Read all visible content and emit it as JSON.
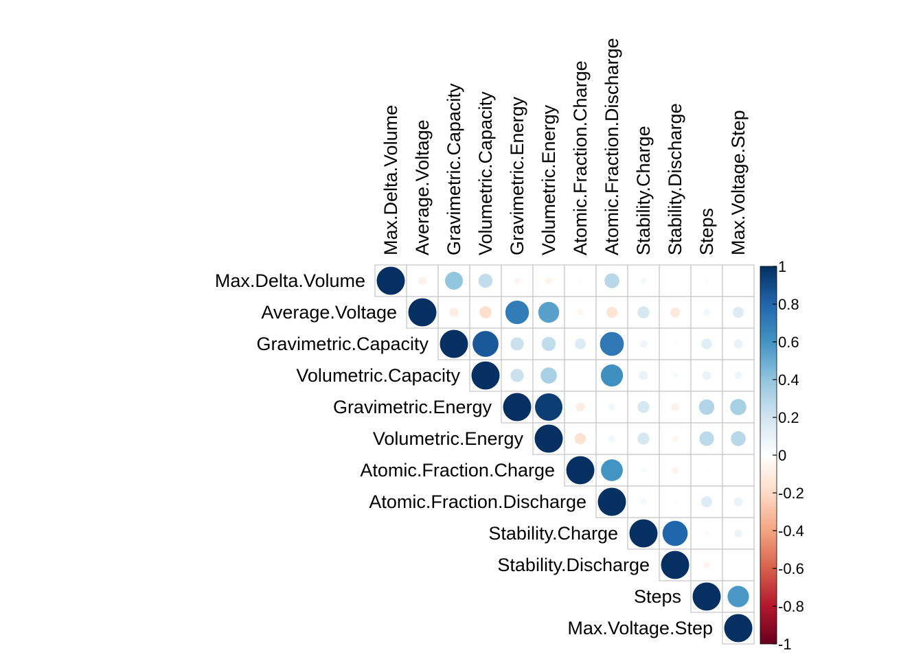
{
  "chart_data": {
    "type": "heatmap",
    "subtype": "correlation-circles-upper",
    "variables": [
      "Max.Delta.Volume",
      "Average.Voltage",
      "Gravimetric.Capacity",
      "Volumetric.Capacity",
      "Gravimetric.Energy",
      "Volumetric.Energy",
      "Atomic.Fraction.Charge",
      "Atomic.Fraction.Discharge",
      "Stability.Charge",
      "Stability.Discharge",
      "Steps",
      "Max.Voltage.Step"
    ],
    "matrix": [
      [
        1,
        -0.08,
        0.4,
        0.25,
        -0.05,
        -0.06,
        0.02,
        0.28,
        0.05,
        0,
        0.02,
        0
      ],
      [
        null,
        1,
        -0.1,
        -0.18,
        0.7,
        0.55,
        -0.05,
        -0.15,
        0.18,
        -0.12,
        0.06,
        0.15
      ],
      [
        null,
        null,
        1,
        0.85,
        0.22,
        0.25,
        0.15,
        0.72,
        0.07,
        0.02,
        0.14,
        0.1
      ],
      [
        null,
        null,
        null,
        1,
        0.22,
        0.33,
        0,
        0.62,
        0.1,
        0.04,
        0.1,
        0.07
      ],
      [
        null,
        null,
        null,
        null,
        1,
        0.95,
        -0.1,
        0.06,
        0.18,
        -0.08,
        0.3,
        0.33
      ],
      [
        null,
        null,
        null,
        null,
        null,
        1,
        -0.16,
        0.06,
        0.18,
        -0.05,
        0.27,
        0.28
      ],
      [
        null,
        null,
        null,
        null,
        null,
        null,
        1,
        0.6,
        0.03,
        -0.06,
        0.02,
        0
      ],
      [
        null,
        null,
        null,
        null,
        null,
        null,
        null,
        1,
        0.05,
        0.02,
        0.15,
        0.1
      ],
      [
        null,
        null,
        null,
        null,
        null,
        null,
        null,
        null,
        1,
        0.8,
        0.03,
        0.08
      ],
      [
        null,
        null,
        null,
        null,
        null,
        null,
        null,
        null,
        null,
        1,
        -0.06,
        0
      ],
      [
        null,
        null,
        null,
        null,
        null,
        null,
        null,
        null,
        null,
        null,
        1,
        0.58
      ],
      [
        null,
        null,
        null,
        null,
        null,
        null,
        null,
        null,
        null,
        null,
        null,
        1
      ]
    ],
    "colorbar": {
      "range": [
        -1,
        1
      ],
      "ticks": [
        "1",
        "0.8",
        "0.6",
        "0.4",
        "0.2",
        "0",
        "-0.2",
        "-0.4",
        "-0.6",
        "-0.8",
        "-1"
      ],
      "tick_values": [
        1,
        0.8,
        0.6,
        0.4,
        0.2,
        0,
        -0.2,
        -0.4,
        -0.6,
        -0.8,
        -1
      ],
      "colors": [
        "#67001F",
        "#B2182B",
        "#D6604D",
        "#F4A582",
        "#FDDBC7",
        "#FFFFFF",
        "#D1E5F0",
        "#92C5DE",
        "#4393C3",
        "#2166AC",
        "#053061"
      ]
    },
    "grid": true,
    "legend_position": "right"
  }
}
